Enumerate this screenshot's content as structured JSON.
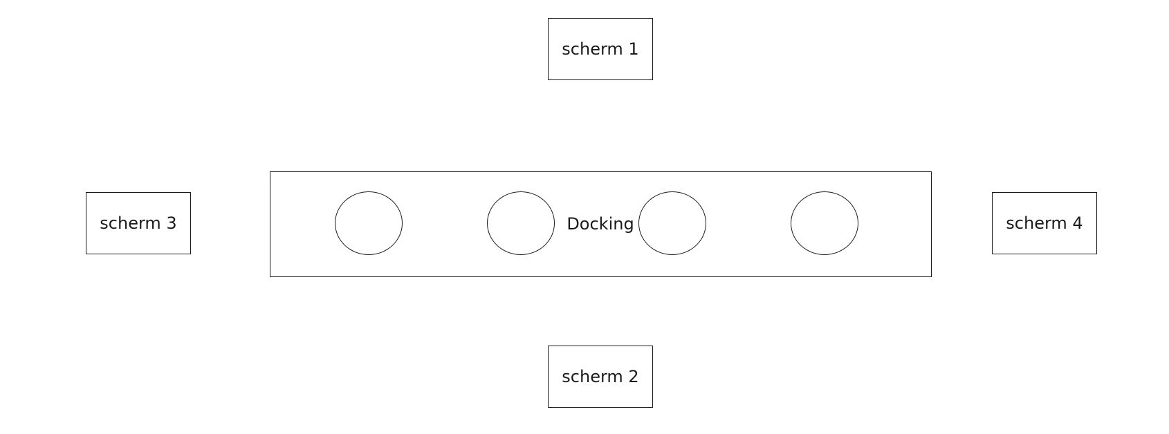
{
  "diagram": {
    "screens": [
      {
        "id": "screen-1",
        "label": "scherm 1"
      },
      {
        "id": "screen-2",
        "label": "scherm 2"
      },
      {
        "id": "screen-3",
        "label": "scherm 3"
      },
      {
        "id": "screen-4",
        "label": "scherm 4"
      }
    ],
    "docking": {
      "label": "Docking",
      "port_count": 4
    },
    "colors": {
      "stroke": "#1a1a1a",
      "fill": "#ffffff",
      "text": "#1a1a1a"
    }
  }
}
